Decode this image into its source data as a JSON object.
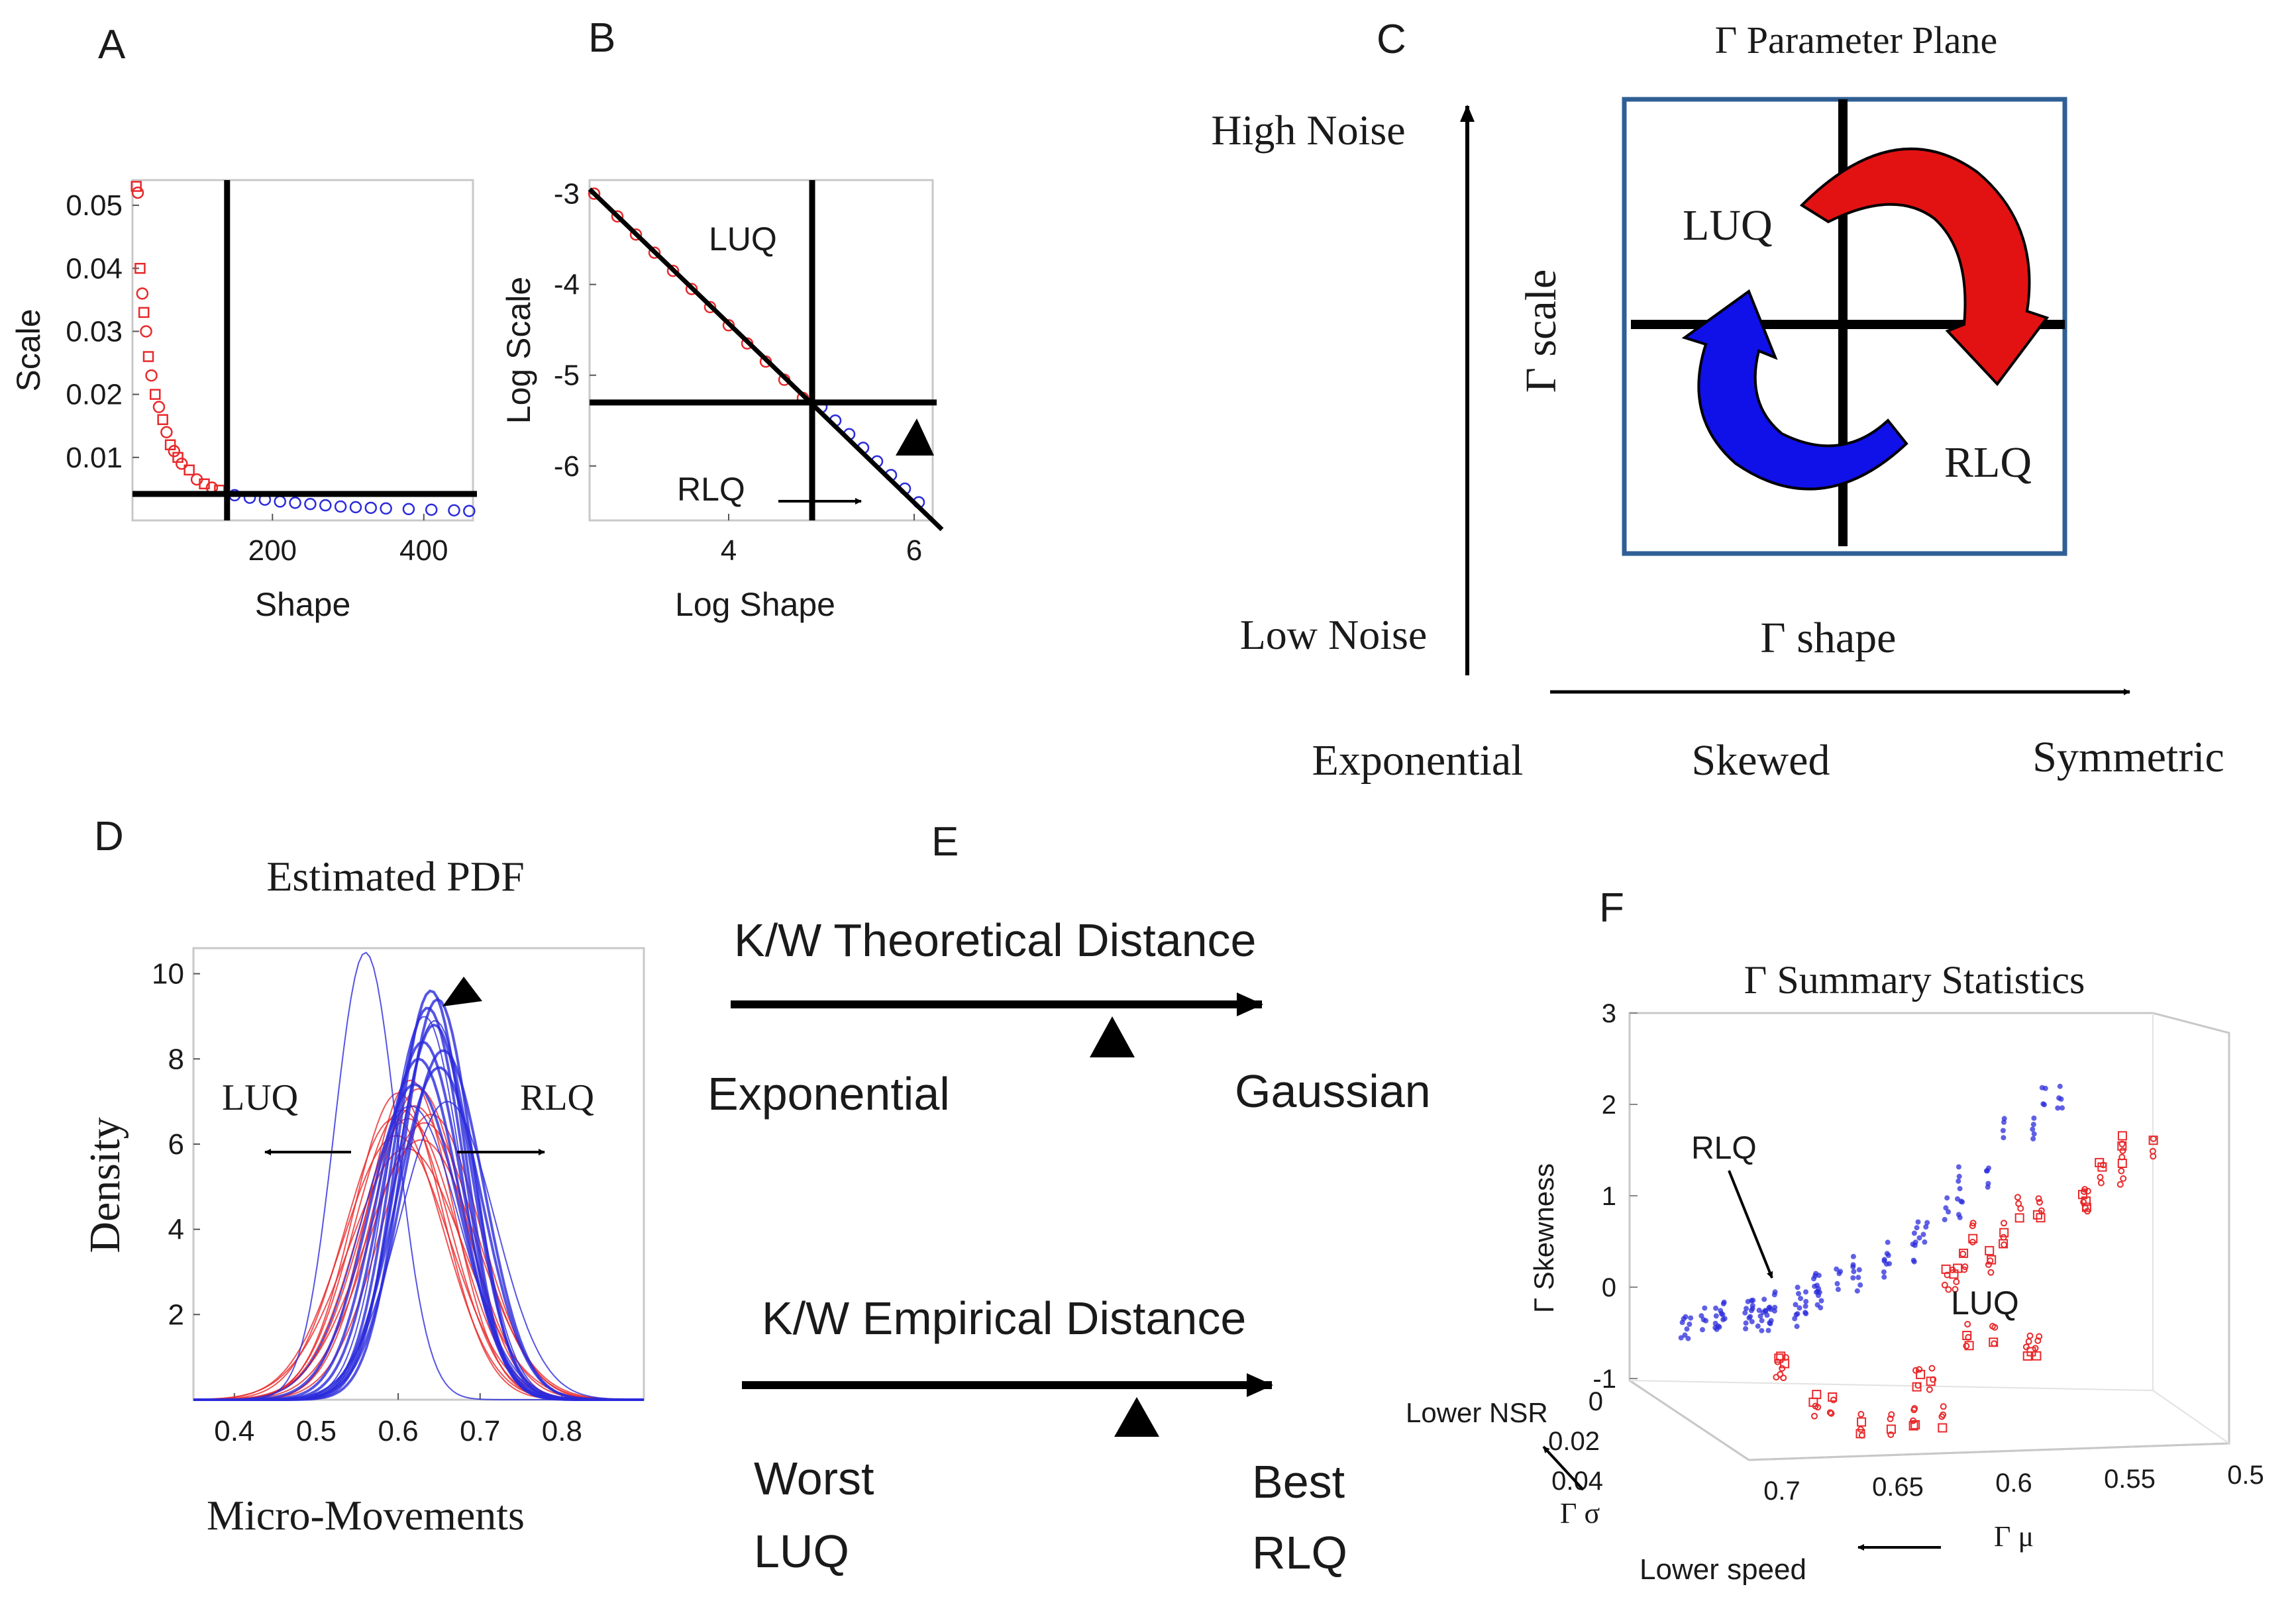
{
  "colors": {
    "red": "#e8292b",
    "blue": "#2b2bdc",
    "black": "#000000",
    "frame": "#2f5f94"
  },
  "panel_labels": {
    "a": "A",
    "b": "B",
    "c": "C",
    "d": "D",
    "e": "E",
    "f": "F"
  },
  "chart_data": [
    {
      "id": "A",
      "type": "scatter",
      "xlabel": "Shape",
      "ylabel": "Scale",
      "xlim": [
        15,
        465
      ],
      "ylim": [
        0,
        0.054
      ],
      "x_ticks": [
        200,
        400
      ],
      "x_tick_labels": [
        "200",
        "400"
      ],
      "y_ticks": [
        0.01,
        0.02,
        0.03,
        0.04,
        0.05
      ],
      "y_tick_labels": [
        "0.01",
        "0.02",
        "0.03",
        "0.04",
        "0.05"
      ],
      "vline": 140,
      "hline": 0.0042,
      "series": [
        {
          "name": "red",
          "color": "#e8292b",
          "x": [
            20,
            22,
            25,
            28,
            30,
            33,
            36,
            40,
            45,
            50,
            55,
            60,
            65,
            70,
            75,
            80,
            90,
            100,
            110,
            120,
            130
          ],
          "y": [
            0.053,
            0.052,
            0.04,
            0.036,
            0.033,
            0.03,
            0.026,
            0.023,
            0.02,
            0.018,
            0.016,
            0.014,
            0.012,
            0.011,
            0.01,
            0.009,
            0.008,
            0.0065,
            0.0058,
            0.0052,
            0.0048
          ]
        },
        {
          "name": "blue",
          "color": "#2b2bdc",
          "x": [
            150,
            170,
            190,
            210,
            230,
            250,
            270,
            290,
            310,
            330,
            350,
            380,
            410,
            440,
            460
          ],
          "y": [
            0.004,
            0.0036,
            0.0033,
            0.003,
            0.0028,
            0.0026,
            0.0024,
            0.0022,
            0.0021,
            0.002,
            0.0019,
            0.0018,
            0.0017,
            0.0016,
            0.0015
          ]
        }
      ]
    },
    {
      "id": "B",
      "type": "scatter",
      "xlabel": "Log Shape",
      "ylabel": "Log Scale",
      "xlim": [
        2.5,
        6.2
      ],
      "ylim": [
        -6.6,
        -2.85
      ],
      "x_ticks": [
        4,
        6
      ],
      "x_tick_labels": [
        "4",
        "6"
      ],
      "y_ticks": [
        -3,
        -4,
        -5,
        -6
      ],
      "y_tick_labels": [
        "-3",
        "-4",
        "-5",
        "-6"
      ],
      "vline": 4.9,
      "hline": -5.3,
      "fit_line": [
        [
          2.5,
          -2.95
        ],
        [
          6.3,
          -6.7
        ]
      ],
      "annotations": {
        "luq": "LUQ",
        "rlq": "RLQ"
      },
      "series": [
        {
          "name": "red",
          "color": "#e8292b",
          "x": [
            2.55,
            2.8,
            3.0,
            3.2,
            3.4,
            3.6,
            3.8,
            4.0,
            4.2,
            4.4,
            4.6,
            4.8
          ],
          "y": [
            -3.0,
            -3.25,
            -3.45,
            -3.65,
            -3.85,
            -4.05,
            -4.25,
            -4.45,
            -4.65,
            -4.85,
            -5.05,
            -5.25
          ]
        },
        {
          "name": "blue",
          "color": "#2b2bdc",
          "x": [
            5.0,
            5.15,
            5.3,
            5.45,
            5.6,
            5.75,
            5.9,
            6.05
          ],
          "y": [
            -5.35,
            -5.5,
            -5.65,
            -5.8,
            -5.95,
            -6.1,
            -6.25,
            -6.4
          ]
        }
      ]
    },
    {
      "id": "D",
      "type": "line",
      "title": "Estimated PDF",
      "xlabel": "Micro-Movements",
      "ylabel": "Density",
      "xlim": [
        0.35,
        0.9
      ],
      "ylim": [
        0,
        10.6
      ],
      "x_ticks": [
        0.4,
        0.5,
        0.6,
        0.7,
        0.8
      ],
      "x_tick_labels": [
        "0.4",
        "0.5",
        "0.6",
        "0.7",
        "0.8"
      ],
      "y_ticks": [
        2,
        4,
        6,
        8,
        10
      ],
      "y_tick_labels": [
        "2",
        "4",
        "6",
        "8",
        "10"
      ],
      "annotations": {
        "luq": "LUQ",
        "rlq": "RLQ"
      },
      "series": [
        {
          "name": "red gamma PDFs",
          "color": "#e8292b",
          "curves": [
            [
              0.6,
              0.055,
              7.2
            ],
            [
              0.605,
              0.058,
              6.8
            ],
            [
              0.612,
              0.06,
              6.6
            ],
            [
              0.62,
              0.062,
              6.9
            ],
            [
              0.625,
              0.056,
              7.3
            ],
            [
              0.598,
              0.065,
              6.2
            ],
            [
              0.632,
              0.064,
              6.5
            ],
            [
              0.61,
              0.07,
              5.9
            ],
            [
              0.615,
              0.052,
              7.5
            ],
            [
              0.64,
              0.06,
              6.7
            ],
            [
              0.595,
              0.06,
              6.6
            ],
            [
              0.628,
              0.068,
              6.1
            ]
          ]
        },
        {
          "name": "blue gamma PDFs",
          "color": "#2b2bdc",
          "curves": [
            [
              0.56,
              0.038,
              10.5
            ],
            [
              0.64,
              0.042,
              9.6
            ],
            [
              0.636,
              0.044,
              9.2
            ],
            [
              0.644,
              0.046,
              8.8
            ],
            [
              0.63,
              0.048,
              8.4
            ],
            [
              0.648,
              0.043,
              9.4
            ],
            [
              0.625,
              0.05,
              8.0
            ],
            [
              0.65,
              0.052,
              7.8
            ],
            [
              0.62,
              0.055,
              7.4
            ],
            [
              0.655,
              0.05,
              8.2
            ],
            [
              0.645,
              0.047,
              8.9
            ],
            [
              0.632,
              0.045,
              9.0
            ],
            [
              0.66,
              0.058,
              7.0
            ],
            [
              0.615,
              0.06,
              6.9
            ]
          ]
        }
      ]
    },
    {
      "id": "F",
      "type": "scatter",
      "title": "Γ Summary Statistics",
      "zlabel": "Γ Skewness",
      "xlabel": "Γ μ",
      "ylabel": "Γ σ",
      "z_ticks": [
        "3",
        "2",
        "1",
        "0",
        "-1"
      ],
      "x_ticks": [
        "0.7",
        "0.65",
        "0.6",
        "0.55",
        "0.5"
      ],
      "y_ticks": [
        "0",
        "0.02",
        "0.04"
      ],
      "annotations": {
        "rlq": "RLQ",
        "luq": "LUQ",
        "lower_nsr": "Lower NSR",
        "lower_speed": "Lower speed"
      },
      "series": [
        {
          "name": "blue",
          "color": "#2b2bdc",
          "points": [
            [
              0.69,
              0.01,
              -0.2
            ],
            [
              0.68,
              0.01,
              -0.1
            ],
            [
              0.675,
              0.012,
              -0.05
            ],
            [
              0.67,
              0.01,
              0.0
            ],
            [
              0.665,
              0.012,
              0.05
            ],
            [
              0.66,
              0.01,
              -0.1
            ],
            [
              0.655,
              0.012,
              0.0
            ],
            [
              0.65,
              0.01,
              0.1
            ],
            [
              0.645,
              0.012,
              0.2
            ],
            [
              0.64,
              0.01,
              0.3
            ],
            [
              0.63,
              0.012,
              0.4
            ],
            [
              0.62,
              0.01,
              0.5
            ],
            [
              0.61,
              0.012,
              0.7
            ],
            [
              0.6,
              0.01,
              0.9
            ],
            [
              0.59,
              0.012,
              1.2
            ],
            [
              0.58,
              0.01,
              1.5
            ],
            [
              0.565,
              0.012,
              2.1
            ],
            [
              0.55,
              0.01,
              2.4
            ]
          ]
        },
        {
          "name": "red",
          "color": "#e8292b",
          "points": [
            [
              0.665,
              0.02,
              -0.4
            ],
            [
              0.66,
              0.03,
              -0.6
            ],
            [
              0.64,
              0.03,
              -0.8
            ],
            [
              0.62,
              0.03,
              -0.7
            ],
            [
              0.61,
              0.02,
              -0.5
            ],
            [
              0.6,
              0.02,
              0.6
            ],
            [
              0.59,
              0.02,
              0.8
            ],
            [
              0.58,
              0.015,
              1.0
            ],
            [
              0.57,
              0.02,
              1.4
            ],
            [
              0.56,
              0.03,
              1.7
            ],
            [
              0.55,
              0.03,
              2.0
            ],
            [
              0.54,
              0.03,
              2.3
            ],
            [
              0.6,
              0.03,
              0.2
            ],
            [
              0.58,
              0.03,
              0.1
            ]
          ]
        }
      ]
    }
  ],
  "panel_c": {
    "title": "Γ Parameter Plane",
    "high_noise": "High Noise",
    "low_noise": "Low Noise",
    "scale_label": "Γ scale",
    "shape_label": "Γ shape",
    "luq": "LUQ",
    "rlq": "RLQ",
    "x_categories": [
      "Exponential",
      "Skewed",
      "Symmetric"
    ]
  },
  "panel_e": {
    "theoretical_title": "K/W Theoretical Distance",
    "theoretical_left": "Exponential",
    "theoretical_right": "Gaussian",
    "empirical_title": "K/W Empirical Distance",
    "empirical_left_1": "Worst",
    "empirical_left_2": "LUQ",
    "empirical_right_1": "Best",
    "empirical_right_2": "RLQ"
  }
}
